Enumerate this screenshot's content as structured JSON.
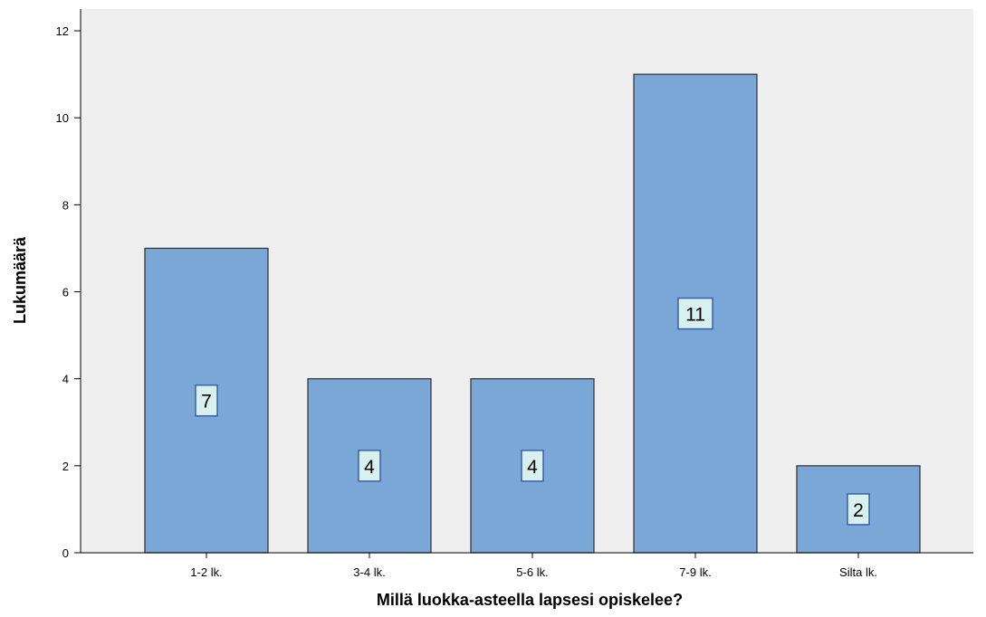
{
  "chart_data": {
    "type": "bar",
    "categories": [
      "1-2 lk.",
      "3-4 lk.",
      "5-6 lk.",
      "7-9 lk.",
      "Silta lk."
    ],
    "values": [
      7,
      4,
      4,
      11,
      2
    ],
    "data_labels": [
      "7",
      "4",
      "4",
      "11",
      "2"
    ],
    "xlabel": "Millä luokka-asteella lapsesi opiskelee?",
    "ylabel": "Lukumäärä",
    "ylim": [
      0,
      12.5
    ],
    "yticks": [
      0,
      2,
      4,
      6,
      8,
      10,
      12
    ],
    "ytick_labels": [
      "0",
      "2",
      "4",
      "6",
      "8",
      "10",
      "12"
    ],
    "grid": false,
    "legend": "none",
    "colors": {
      "plot_background": "#efefef",
      "bar_fill": "#7aa7d5",
      "bar_stroke": "#2e2e2e",
      "label_box_fill": "#d8f0ee",
      "label_box_stroke": "#3a5fb0"
    }
  }
}
